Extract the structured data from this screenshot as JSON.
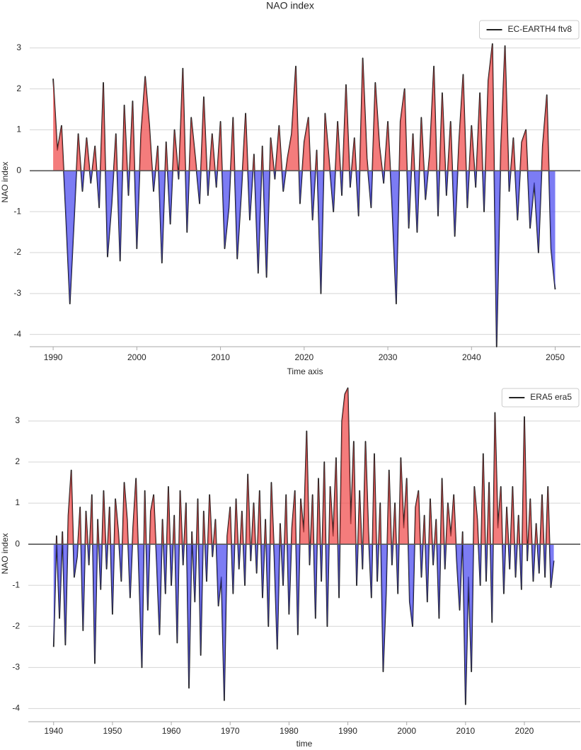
{
  "chart_data": [
    {
      "type": "line",
      "title": "NAO index",
      "xlabel": "Time axis",
      "ylabel": "NAO index",
      "x": [
        1990,
        1990.5,
        1991,
        1991.5,
        1992,
        1992.5,
        1993,
        1993.5,
        1994,
        1994.5,
        1995,
        1995.5,
        1996,
        1996.5,
        1997,
        1997.5,
        1998,
        1998.5,
        1999,
        1999.5,
        2000,
        2000.5,
        2001,
        2001.5,
        2002,
        2002.5,
        2003,
        2003.5,
        2004,
        2004.5,
        2005,
        2005.5,
        2006,
        2006.5,
        2007,
        2007.5,
        2008,
        2008.5,
        2009,
        2009.5,
        2010,
        2010.5,
        2011,
        2011.5,
        2012,
        2012.5,
        2013,
        2013.5,
        2014,
        2014.5,
        2015,
        2015.5,
        2016,
        2016.5,
        2017,
        2017.5,
        2018,
        2018.5,
        2019,
        2019.5,
        2020,
        2020.5,
        2021,
        2021.5,
        2022,
        2022.5,
        2023,
        2023.5,
        2024,
        2024.5,
        2025,
        2025.5,
        2026,
        2026.5,
        2027,
        2027.5,
        2028,
        2028.5,
        2029,
        2029.5,
        2030,
        2030.5,
        2031,
        2031.5,
        2032,
        2032.5,
        2033,
        2033.5,
        2034,
        2034.5,
        2035,
        2035.5,
        2036,
        2036.5,
        2037,
        2037.5,
        2038,
        2038.5,
        2039,
        2039.5,
        2040,
        2040.5,
        2041,
        2041.5,
        2042,
        2042.5,
        2043,
        2043.5,
        2044,
        2044.5,
        2045,
        2045.5,
        2046,
        2046.5,
        2047,
        2047.5,
        2048,
        2048.5,
        2049,
        2049.5,
        2050
      ],
      "series": [
        {
          "name": "EC-EARTH4 ftv8",
          "color": "#222222",
          "values": [
            2.25,
            0.5,
            1.1,
            -1.0,
            -3.25,
            -1.2,
            0.9,
            -0.5,
            0.8,
            -0.3,
            0.6,
            -0.9,
            2.15,
            -2.1,
            -0.8,
            0.9,
            -2.2,
            1.6,
            -0.6,
            1.7,
            -1.9,
            0.9,
            2.3,
            1.1,
            -0.5,
            0.6,
            -2.25,
            0.7,
            -1.3,
            1.0,
            -0.2,
            2.5,
            -1.5,
            1.3,
            0.3,
            -0.8,
            1.8,
            -0.6,
            0.9,
            -0.4,
            1.2,
            -1.9,
            -0.9,
            1.3,
            -2.15,
            -0.5,
            1.4,
            -1.2,
            0.4,
            -2.5,
            0.6,
            -2.6,
            0.8,
            -0.2,
            1.1,
            -0.5,
            0.3,
            0.9,
            2.55,
            -0.8,
            0.7,
            1.3,
            -1.2,
            0.5,
            -3.0,
            1.4,
            0.2,
            -1.0,
            1.2,
            -0.6,
            2.1,
            -0.4,
            0.8,
            -1.1,
            2.75,
            0.3,
            -0.9,
            2.15,
            0.6,
            -0.3,
            1.2,
            -0.8,
            -3.25,
            1.2,
            2.0,
            -1.4,
            0.9,
            -1.5,
            1.3,
            -0.7,
            0.4,
            2.55,
            -1.1,
            1.9,
            -0.6,
            1.2,
            -1.6,
            0.7,
            2.35,
            -0.9,
            1.1,
            -0.4,
            1.9,
            -1.0,
            2.2,
            3.1,
            -4.3,
            0.5,
            3.05,
            -0.5,
            0.8,
            -1.2,
            0.7,
            1.0,
            -1.4,
            -0.3,
            -2.0,
            0.6,
            1.85,
            -1.9,
            -2.9
          ]
        }
      ],
      "positive_color": "#f05050",
      "negative_color": "#5050f0",
      "zero_line": 0,
      "xlim": [
        1987.2,
        2053
      ],
      "ylim": [
        -4.3,
        3.74
      ],
      "xticks": [
        1990,
        2000,
        2010,
        2020,
        2030,
        2040,
        2050
      ],
      "yticks": [
        -4,
        -3,
        -2,
        -1,
        0,
        1,
        2,
        3
      ],
      "grid": true,
      "legend": "upper right"
    },
    {
      "type": "line",
      "xlabel": "time",
      "ylabel": "NAO index",
      "x": [
        1940,
        1940.5,
        1941,
        1941.5,
        1942,
        1942.5,
        1943,
        1943.5,
        1944,
        1944.5,
        1945,
        1945.5,
        1946,
        1946.5,
        1947,
        1947.5,
        1948,
        1948.5,
        1949,
        1949.5,
        1950,
        1950.5,
        1951,
        1951.5,
        1952,
        1952.5,
        1953,
        1953.5,
        1954,
        1954.5,
        1955,
        1955.5,
        1956,
        1956.5,
        1957,
        1957.5,
        1958,
        1958.5,
        1959,
        1959.5,
        1960,
        1960.5,
        1961,
        1961.5,
        1962,
        1962.5,
        1963,
        1963.5,
        1964,
        1964.5,
        1965,
        1965.5,
        1966,
        1966.5,
        1967,
        1967.5,
        1968,
        1968.5,
        1969,
        1969.5,
        1970,
        1970.5,
        1971,
        1971.5,
        1972,
        1972.5,
        1973,
        1973.5,
        1974,
        1974.5,
        1975,
        1975.5,
        1976,
        1976.5,
        1977,
        1977.5,
        1978,
        1978.5,
        1979,
        1979.5,
        1980,
        1980.5,
        1981,
        1981.5,
        1982,
        1982.5,
        1983,
        1983.5,
        1984,
        1984.5,
        1985,
        1985.5,
        1986,
        1986.5,
        1987,
        1987.5,
        1988,
        1988.5,
        1989,
        1989.5,
        1990,
        1990.5,
        1991,
        1991.5,
        1992,
        1992.5,
        1993,
        1993.5,
        1994,
        1994.5,
        1995,
        1995.5,
        1996,
        1996.5,
        1997,
        1997.5,
        1998,
        1998.5,
        1999,
        1999.5,
        2000,
        2000.5,
        2001,
        2001.5,
        2002,
        2002.5,
        2003,
        2003.5,
        2004,
        2004.5,
        2005,
        2005.5,
        2006,
        2006.5,
        2007,
        2007.5,
        2008,
        2008.5,
        2009,
        2009.5,
        2010,
        2010.5,
        2011,
        2011.5,
        2012,
        2012.5,
        2013,
        2013.5,
        2014,
        2014.5,
        2015,
        2015.5,
        2016,
        2016.5,
        2017,
        2017.5,
        2018,
        2018.5,
        2019,
        2019.5,
        2020,
        2020.5,
        2021,
        2021.5,
        2022,
        2022.5,
        2023,
        2023.5,
        2024,
        2024.5,
        2025
      ],
      "series": [
        {
          "name": "ERA5 era5",
          "color": "#222222",
          "values": [
            -2.5,
            0.2,
            -1.8,
            0.3,
            -2.45,
            0.7,
            1.8,
            -0.8,
            -0.3,
            0.9,
            -2.1,
            0.8,
            -0.5,
            1.2,
            -2.9,
            0.6,
            -1.1,
            1.3,
            -0.6,
            0.9,
            -1.7,
            1.1,
            0.3,
            -0.9,
            1.5,
            0.6,
            -1.3,
            0.4,
            1.6,
            -0.7,
            -3.0,
            1.3,
            -1.6,
            0.8,
            1.2,
            -0.4,
            -2.2,
            0.6,
            -1.2,
            1.4,
            -1.0,
            0.7,
            -2.4,
            1.3,
            -0.5,
            1.0,
            -3.5,
            0.3,
            -1.4,
            1.1,
            -2.7,
            0.8,
            -0.9,
            1.2,
            -0.3,
            0.6,
            -1.5,
            -0.8,
            -3.8,
            0.2,
            0.9,
            -1.2,
            1.1,
            -0.6,
            0.8,
            -1.0,
            1.7,
            -0.4,
            1.0,
            -0.7,
            1.3,
            -1.3,
            0.6,
            -2.0,
            1.5,
            -0.3,
            -2.55,
            0.5,
            -1.0,
            1.2,
            -1.7,
            0.4,
            1.3,
            -2.2,
            1.1,
            0.3,
            2.75,
            -0.5,
            1.2,
            -1.8,
            1.6,
            -0.9,
            2.0,
            -2.0,
            1.4,
            0.2,
            2.1,
            -1.3,
            3.0,
            3.65,
            3.8,
            0.5,
            2.5,
            -1.0,
            1.3,
            -0.6,
            2.5,
            0.3,
            -1.3,
            2.2,
            -0.9,
            1.0,
            -3.1,
            -1.2,
            1.8,
            -0.5,
            1.0,
            -1.2,
            2.1,
            0.4,
            1.6,
            -1.4,
            -2.0,
            0.9,
            1.3,
            -0.8,
            0.7,
            -1.4,
            1.1,
            -0.5,
            0.6,
            -1.8,
            1.6,
            -0.6,
            1.0,
            0.2,
            1.2,
            -0.4,
            -1.6,
            0.3,
            -3.9,
            -0.8,
            -3.1,
            1.4,
            0.6,
            -1.0,
            2.2,
            -0.9,
            1.5,
            -1.9,
            3.2,
            0.4,
            1.4,
            -1.2,
            0.9,
            -0.6,
            1.4,
            -0.8,
            0.7,
            -1.1,
            3.1,
            -0.4,
            1.1,
            -0.9,
            0.5,
            -0.7,
            1.2,
            -0.8,
            1.4,
            -1.05,
            -0.4
          ]
        }
      ],
      "positive_color": "#f05050",
      "negative_color": "#5050f0",
      "zero_line": 0,
      "xlim": [
        1935.7,
        2029.5
      ],
      "ylim": [
        -4.32,
        3.86
      ],
      "xticks": [
        1940,
        1950,
        1960,
        1970,
        1980,
        1990,
        2000,
        2010,
        2020
      ],
      "yticks": [
        -4,
        -3,
        -2,
        -1,
        0,
        1,
        2,
        3
      ],
      "grid": true,
      "legend": "upper right"
    }
  ]
}
